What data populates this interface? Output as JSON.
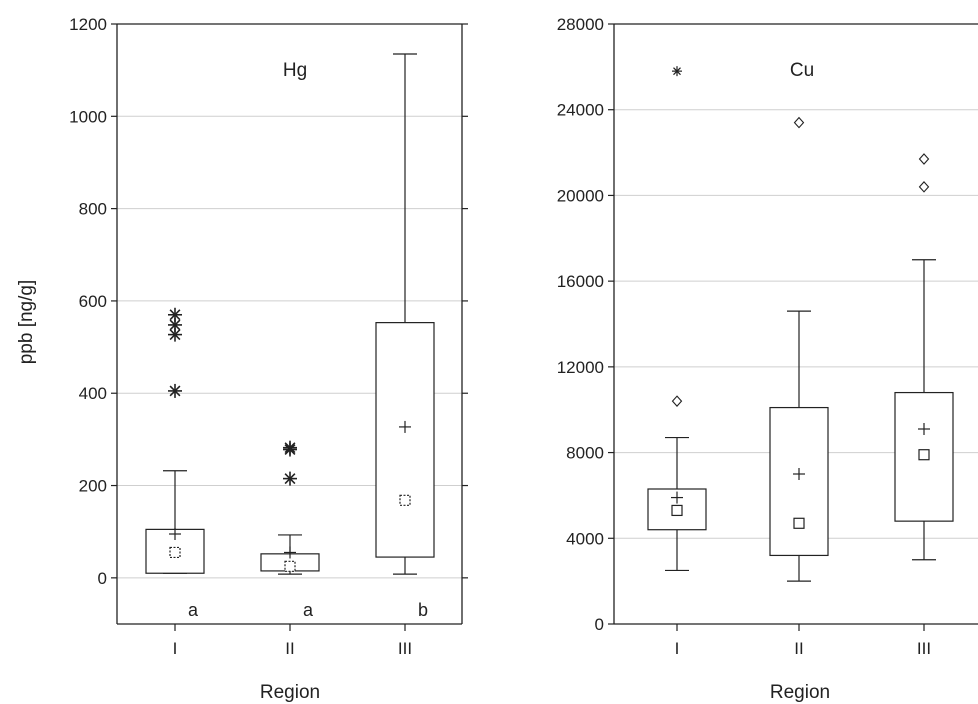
{
  "chart_data": [
    {
      "type": "box",
      "title": "Hg",
      "xlabel": "Region",
      "ylabel": "ppb [ng/g]",
      "categories": [
        "I",
        "II",
        "III"
      ],
      "ylim": [
        -100,
        1200
      ],
      "yticks": [
        0,
        200,
        400,
        600,
        800,
        1000,
        1200
      ],
      "grid": true,
      "boxes": [
        {
          "category": "I",
          "q1": 10,
          "q3": 105,
          "whisker_low": 10,
          "whisker_high": 232,
          "median": 55,
          "mean": 95,
          "outliers": [
            405,
            527,
            548,
            570
          ],
          "group_letter": "a"
        },
        {
          "category": "II",
          "q1": 15,
          "q3": 52,
          "whisker_low": 8,
          "whisker_high": 93,
          "median": 25,
          "mean": 55,
          "outliers": [
            215,
            278,
            282
          ],
          "group_letter": "a"
        },
        {
          "category": "III",
          "q1": 45,
          "q3": 553,
          "whisker_low": 8,
          "whisker_high": 1135,
          "median": 168,
          "mean": 327,
          "outliers": [],
          "group_letter": "b"
        }
      ]
    },
    {
      "type": "box",
      "title": "Cu",
      "xlabel": "Region",
      "ylabel": "",
      "categories": [
        "I",
        "II",
        "III"
      ],
      "ylim": [
        0,
        28000
      ],
      "yticks": [
        0,
        4000,
        8000,
        12000,
        16000,
        20000,
        24000,
        28000
      ],
      "grid": true,
      "boxes": [
        {
          "category": "I",
          "q1": 4400,
          "q3": 6300,
          "whisker_low": 2500,
          "whisker_high": 8700,
          "median": 5300,
          "mean": 5900,
          "outliers": [
            10400
          ],
          "extremes": [
            25800
          ],
          "group_letter": ""
        },
        {
          "category": "II",
          "q1": 3200,
          "q3": 10100,
          "whisker_low": 2000,
          "whisker_high": 14600,
          "median": 4700,
          "mean": 7000,
          "outliers": [
            23400
          ],
          "extremes": [],
          "group_letter": ""
        },
        {
          "category": "III",
          "q1": 4800,
          "q3": 10800,
          "whisker_low": 3000,
          "whisker_high": 17000,
          "median": 7900,
          "mean": 9100,
          "outliers": [
            20400,
            21700
          ],
          "extremes": [],
          "group_letter": ""
        }
      ]
    }
  ]
}
